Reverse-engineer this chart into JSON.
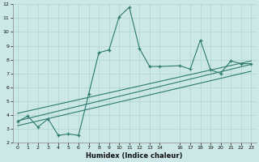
{
  "xlabel": "Humidex (Indice chaleur)",
  "bg_color": "#cce8e6",
  "grid_color": "#aed4d0",
  "line_color": "#2d7a6e",
  "xlim": [
    -0.5,
    23.5
  ],
  "ylim": [
    2,
    12
  ],
  "xticks": [
    0,
    1,
    2,
    3,
    4,
    5,
    6,
    7,
    8,
    9,
    10,
    11,
    12,
    13,
    14,
    16,
    17,
    18,
    19,
    20,
    21,
    22,
    23
  ],
  "yticks": [
    2,
    3,
    4,
    5,
    6,
    7,
    8,
    9,
    10,
    11,
    12
  ],
  "curve_x": [
    0,
    1,
    2,
    3,
    4,
    5,
    6,
    7,
    8,
    9,
    10,
    11,
    12,
    13,
    14,
    16,
    17,
    18,
    19,
    20,
    21,
    22,
    23
  ],
  "curve_y": [
    3.5,
    3.9,
    3.1,
    3.7,
    2.5,
    2.6,
    2.5,
    5.5,
    8.5,
    8.7,
    11.1,
    11.8,
    8.8,
    7.5,
    7.5,
    7.55,
    7.3,
    9.4,
    7.25,
    7.0,
    7.9,
    7.7,
    7.7
  ],
  "line1_x": [
    0,
    23
  ],
  "line1_y": [
    3.55,
    7.65
  ],
  "line2_x": [
    0,
    23
  ],
  "line2_y": [
    4.1,
    7.9
  ],
  "line3_x": [
    0,
    23
  ],
  "line3_y": [
    3.2,
    7.15
  ]
}
